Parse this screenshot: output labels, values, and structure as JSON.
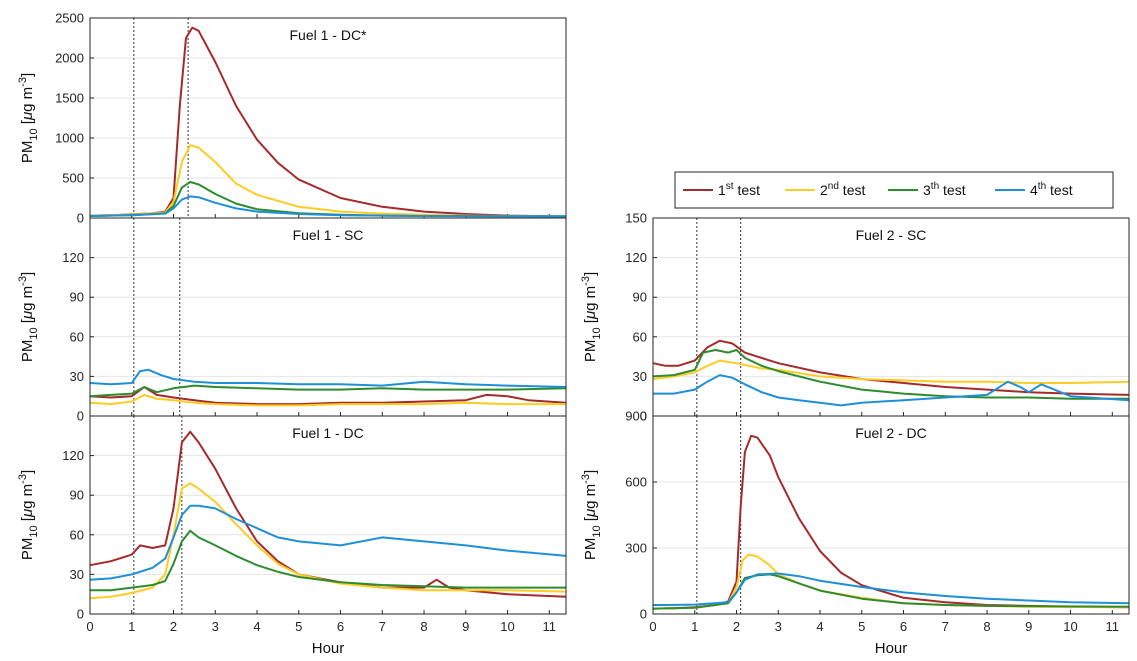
{
  "xlabel": "Hour",
  "ylabel_main": "PM",
  "ylabel_sub": "10",
  "ylabel_unit_open": " [",
  "ylabel_unit_mu": "μ",
  "ylabel_unit_rest": "g m",
  "ylabel_unit_exp": "-3",
  "ylabel_unit_close": "]",
  "legend": {
    "placement": "top",
    "entries": [
      {
        "ordinal": "1",
        "sup": "st",
        "rest": " test",
        "color": "#a52a2a"
      },
      {
        "ordinal": "2",
        "sup": "nd",
        "rest": " test",
        "color": "#ffcc22"
      },
      {
        "ordinal": "3",
        "sup": "th",
        "rest": " test",
        "color": "#2e8b2e"
      },
      {
        "ordinal": "4",
        "sup": "th",
        "rest": " test",
        "color": "#1f8fd8"
      }
    ]
  },
  "chart_data": [
    {
      "type": "line",
      "panel": "top-left",
      "title": "Fuel 1 - DC*",
      "xlim": [
        0,
        11.4
      ],
      "ylim": [
        0,
        2500
      ],
      "xticks": [
        "0",
        "1",
        "2",
        "3",
        "4",
        "5",
        "6",
        "7",
        "8",
        "9",
        "10",
        "11"
      ],
      "yticks": [
        "0",
        "500",
        "1000",
        "1500",
        "2000",
        "2500"
      ],
      "vlines": [
        1.05,
        2.35
      ],
      "grid": "horizontal",
      "series": [
        {
          "color": "#a52a2a",
          "x": [
            0,
            0.5,
            1.0,
            1.5,
            1.8,
            2.0,
            2.15,
            2.3,
            2.45,
            2.6,
            3.0,
            3.5,
            4.0,
            4.5,
            5.0,
            6.0,
            7.0,
            8.0,
            9.0,
            10.0,
            11.4
          ],
          "y": [
            30,
            35,
            45,
            60,
            80,
            250,
            1400,
            2250,
            2380,
            2340,
            1950,
            1400,
            980,
            690,
            480,
            250,
            140,
            80,
            50,
            30,
            20
          ]
        },
        {
          "color": "#ffcc22",
          "x": [
            0,
            1.0,
            1.8,
            2.0,
            2.2,
            2.4,
            2.6,
            3.0,
            3.5,
            4.0,
            5.0,
            6.0,
            7.0,
            8.0,
            9.0,
            11.4
          ],
          "y": [
            30,
            40,
            70,
            200,
            700,
            910,
            880,
            700,
            430,
            290,
            140,
            80,
            55,
            40,
            30,
            20
          ]
        },
        {
          "color": "#2e8b2e",
          "x": [
            0,
            1.0,
            1.8,
            2.0,
            2.2,
            2.4,
            2.6,
            3.0,
            3.5,
            4.0,
            5.0,
            6.0,
            7.0,
            8.0,
            11.4
          ],
          "y": [
            25,
            35,
            60,
            150,
            380,
            450,
            420,
            300,
            180,
            110,
            60,
            40,
            30,
            25,
            20
          ]
        },
        {
          "color": "#1f8fd8",
          "x": [
            0,
            1.0,
            1.8,
            2.0,
            2.2,
            2.4,
            2.6,
            3.0,
            3.5,
            4.0,
            5.0,
            6.0,
            7.0,
            8.0,
            11.4
          ],
          "y": [
            25,
            35,
            55,
            120,
            230,
            270,
            260,
            190,
            120,
            80,
            50,
            35,
            30,
            25,
            20
          ]
        }
      ]
    },
    {
      "type": "line",
      "panel": "middle-left",
      "title": "Fuel 1 - SC",
      "xlim": [
        0,
        11.4
      ],
      "ylim": [
        0,
        150
      ],
      "xticks": [
        "0",
        "1",
        "2",
        "3",
        "4",
        "5",
        "6",
        "7",
        "8",
        "9",
        "10",
        "11"
      ],
      "yticks": [
        "0",
        "30",
        "60",
        "90",
        "120",
        ""
      ],
      "vlines": [
        1.05,
        2.15
      ],
      "grid": "horizontal",
      "series": [
        {
          "color": "#a52a2a",
          "x": [
            0,
            0.5,
            1.0,
            1.3,
            1.6,
            2.0,
            2.5,
            3.0,
            4.0,
            5.0,
            6.0,
            7.0,
            8.0,
            9.0,
            9.5,
            10.0,
            10.5,
            11.4
          ],
          "y": [
            15,
            14,
            15,
            22,
            16,
            14,
            12,
            10,
            9,
            9,
            10,
            10,
            11,
            12,
            16,
            15,
            12,
            10
          ]
        },
        {
          "color": "#ffcc22",
          "x": [
            0,
            0.5,
            1.0,
            1.3,
            1.6,
            2.0,
            2.5,
            3.0,
            4.0,
            5.0,
            6.0,
            7.0,
            8.0,
            9.0,
            10.0,
            11.4
          ],
          "y": [
            10,
            9,
            11,
            16,
            13,
            12,
            10,
            9,
            8,
            8,
            9,
            9,
            9,
            10,
            9,
            9
          ]
        },
        {
          "color": "#2e8b2e",
          "x": [
            0,
            0.5,
            1.0,
            1.3,
            1.6,
            2.0,
            2.5,
            3.0,
            4.0,
            5.0,
            6.0,
            7.0,
            8.0,
            9.0,
            10.0,
            11.4
          ],
          "y": [
            15,
            16,
            17,
            22,
            18,
            21,
            23,
            22,
            21,
            20,
            20,
            21,
            20,
            20,
            20,
            21
          ]
        },
        {
          "color": "#1f8fd8",
          "x": [
            0,
            0.5,
            1.0,
            1.2,
            1.4,
            1.7,
            2.0,
            2.5,
            3.0,
            4.0,
            5.0,
            6.0,
            7.0,
            8.0,
            9.0,
            10.0,
            11.4
          ],
          "y": [
            25,
            24,
            25,
            34,
            35,
            31,
            28,
            26,
            25,
            25,
            24,
            24,
            23,
            26,
            24,
            23,
            22
          ]
        }
      ]
    },
    {
      "type": "line",
      "panel": "bottom-left",
      "title": "Fuel 1 - DC",
      "xlim": [
        0,
        11.4
      ],
      "ylim": [
        0,
        150
      ],
      "xticks": [
        "0",
        "1",
        "2",
        "3",
        "4",
        "5",
        "6",
        "7",
        "8",
        "9",
        "10",
        "11"
      ],
      "yticks": [
        "0",
        "30",
        "60",
        "90",
        "120",
        ""
      ],
      "vlines": [
        1.05,
        2.2
      ],
      "grid": "horizontal",
      "series": [
        {
          "color": "#a52a2a",
          "x": [
            0,
            0.5,
            1.0,
            1.2,
            1.5,
            1.8,
            2.0,
            2.2,
            2.4,
            2.6,
            3.0,
            3.5,
            4.0,
            4.5,
            5.0,
            6.0,
            7.0,
            8.0,
            8.3,
            8.6,
            9.0,
            10.0,
            11.4
          ],
          "y": [
            37,
            40,
            45,
            52,
            50,
            52,
            80,
            130,
            138,
            130,
            110,
            80,
            55,
            40,
            30,
            24,
            20,
            20,
            26,
            20,
            18,
            15,
            13
          ]
        },
        {
          "color": "#ffcc22",
          "x": [
            0,
            0.5,
            1.0,
            1.5,
            1.8,
            2.0,
            2.2,
            2.4,
            2.6,
            3.0,
            3.5,
            4.0,
            4.5,
            5.0,
            6.0,
            7.0,
            8.0,
            9.0,
            10.0,
            11.4
          ],
          "y": [
            12,
            13,
            16,
            20,
            30,
            60,
            95,
            99,
            95,
            85,
            68,
            52,
            38,
            30,
            23,
            20,
            18,
            18,
            18,
            17
          ]
        },
        {
          "color": "#2e8b2e",
          "x": [
            0,
            0.5,
            1.0,
            1.5,
            1.8,
            2.0,
            2.2,
            2.4,
            2.6,
            3.0,
            3.5,
            4.0,
            4.5,
            5.0,
            6.0,
            7.0,
            8.0,
            9.0,
            10.0,
            11.4
          ],
          "y": [
            18,
            18,
            20,
            22,
            25,
            38,
            55,
            63,
            58,
            52,
            44,
            37,
            32,
            28,
            24,
            22,
            21,
            20,
            20,
            20
          ]
        },
        {
          "color": "#1f8fd8",
          "x": [
            0,
            0.5,
            1.0,
            1.5,
            1.8,
            2.0,
            2.2,
            2.4,
            2.6,
            3.0,
            3.5,
            4.0,
            4.5,
            5.0,
            6.0,
            7.0,
            8.0,
            9.0,
            10.0,
            11.4
          ],
          "y": [
            26,
            27,
            30,
            35,
            42,
            58,
            75,
            82,
            82,
            80,
            72,
            65,
            58,
            55,
            52,
            58,
            55,
            52,
            48,
            44
          ]
        }
      ]
    },
    {
      "type": "line",
      "panel": "middle-right",
      "title": "Fuel 2 - SC",
      "xlim": [
        0,
        11.4
      ],
      "ylim": [
        0,
        150
      ],
      "xticks": [
        "0",
        "1",
        "2",
        "3",
        "4",
        "5",
        "6",
        "7",
        "8",
        "9",
        "10",
        "11"
      ],
      "yticks": [
        "0",
        "30",
        "60",
        "90",
        "120",
        "150"
      ],
      "vlines": [
        1.05,
        2.1
      ],
      "grid": "horizontal",
      "series": [
        {
          "color": "#a52a2a",
          "x": [
            0,
            0.3,
            0.6,
            1.0,
            1.3,
            1.6,
            1.9,
            2.2,
            2.6,
            3.0,
            4.0,
            5.0,
            6.0,
            7.0,
            8.0,
            9.0,
            10.0,
            11.4
          ],
          "y": [
            40,
            38,
            38,
            42,
            52,
            57,
            55,
            48,
            44,
            40,
            33,
            28,
            25,
            22,
            20,
            18,
            17,
            16
          ]
        },
        {
          "color": "#ffcc22",
          "x": [
            0,
            0.5,
            1.0,
            1.3,
            1.6,
            2.0,
            2.3,
            2.6,
            3.0,
            4.0,
            5.0,
            6.0,
            7.0,
            8.0,
            9.0,
            10.0,
            11.4
          ],
          "y": [
            28,
            30,
            33,
            38,
            42,
            40,
            38,
            36,
            35,
            30,
            28,
            27,
            26,
            26,
            25,
            25,
            26
          ]
        },
        {
          "color": "#2e8b2e",
          "x": [
            0,
            0.5,
            1.0,
            1.2,
            1.5,
            1.8,
            2.0,
            2.2,
            2.6,
            3.0,
            4.0,
            5.0,
            6.0,
            7.0,
            8.0,
            9.0,
            10.0,
            11.4
          ],
          "y": [
            30,
            31,
            35,
            48,
            50,
            48,
            50,
            44,
            38,
            34,
            26,
            20,
            17,
            15,
            14,
            14,
            13,
            13
          ]
        },
        {
          "color": "#1f8fd8",
          "x": [
            0,
            0.5,
            1.0,
            1.3,
            1.6,
            1.9,
            2.2,
            2.6,
            3.0,
            3.5,
            4.0,
            4.5,
            5.0,
            6.0,
            7.0,
            8.0,
            8.5,
            8.8,
            9.0,
            9.3,
            10.0,
            11.4
          ],
          "y": [
            17,
            17,
            20,
            26,
            31,
            29,
            24,
            18,
            14,
            12,
            10,
            8,
            10,
            12,
            14,
            16,
            26,
            22,
            18,
            24,
            15,
            12
          ]
        }
      ]
    },
    {
      "type": "line",
      "panel": "bottom-right",
      "title": "Fuel 2 - DC",
      "xlim": [
        0,
        11.4
      ],
      "ylim": [
        0,
        1100
      ],
      "xticks": [
        "0",
        "1",
        "2",
        "3",
        "4",
        "5",
        "6",
        "7",
        "8",
        "9",
        "10",
        "11"
      ],
      "yticks": [
        "0",
        "300",
        "600",
        "900"
      ],
      "vlines": [
        1.05,
        2.1
      ],
      "grid": "horizontal",
      "series": [
        {
          "color": "#a52a2a",
          "x": [
            0,
            0.5,
            1.0,
            1.5,
            1.8,
            2.0,
            2.1,
            2.2,
            2.35,
            2.5,
            2.8,
            3.0,
            3.5,
            4.0,
            4.5,
            5.0,
            6.0,
            7.0,
            8.0,
            9.0,
            10.0,
            11.4
          ],
          "y": [
            30,
            32,
            38,
            50,
            70,
            180,
            600,
            900,
            990,
            980,
            880,
            760,
            530,
            350,
            230,
            160,
            90,
            65,
            50,
            45,
            40,
            38
          ]
        },
        {
          "color": "#ffcc22",
          "x": [
            0,
            1.0,
            1.8,
            2.0,
            2.15,
            2.3,
            2.5,
            2.8,
            3.0,
            3.5,
            4.0,
            5.0,
            6.0,
            7.0,
            8.0,
            9.0,
            11.4
          ],
          "y": [
            30,
            35,
            60,
            150,
            300,
            330,
            320,
            270,
            220,
            170,
            130,
            90,
            60,
            50,
            45,
            40,
            38
          ]
        },
        {
          "color": "#2e8b2e",
          "x": [
            0,
            1.0,
            1.8,
            2.0,
            2.2,
            2.5,
            2.8,
            3.0,
            3.5,
            4.0,
            5.0,
            6.0,
            7.0,
            8.0,
            11.4
          ],
          "y": [
            30,
            35,
            60,
            120,
            200,
            215,
            220,
            210,
            170,
            130,
            85,
            60,
            50,
            45,
            40
          ]
        },
        {
          "color": "#1f8fd8",
          "x": [
            0,
            0.3,
            1.0,
            1.8,
            2.0,
            2.2,
            2.5,
            3.0,
            3.5,
            4.0,
            5.0,
            6.0,
            7.0,
            8.0,
            9.0,
            10.0,
            11.4
          ],
          "y": [
            50,
            50,
            52,
            65,
            120,
            190,
            220,
            225,
            210,
            185,
            150,
            120,
            100,
            85,
            75,
            65,
            60
          ]
        }
      ]
    }
  ]
}
